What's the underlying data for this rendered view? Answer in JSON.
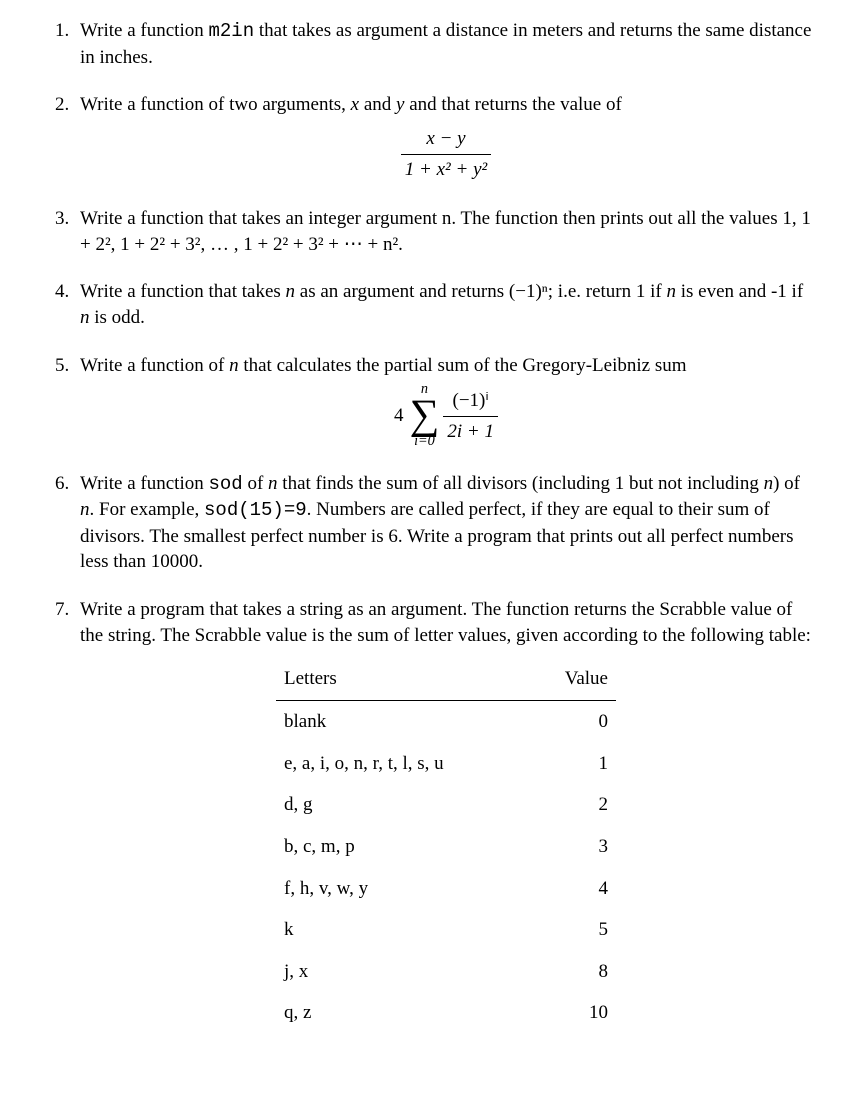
{
  "problems": {
    "q1": {
      "text_a": "Write a function ",
      "code_a": "m2in",
      "text_b": " that takes as argument a distance in meters and returns the same distance in inches."
    },
    "q2": {
      "text_a": "Write a function of two arguments, ",
      "x": "x",
      "and": " and ",
      "y": "y",
      "text_b": " and that returns the value of",
      "frac_num": "x − y",
      "frac_den": "1 + x² + y²"
    },
    "q3": {
      "text_a": "Write a function that takes an integer argument n. The function then prints out all the values ",
      "seq": "1, 1 + 2², 1 + 2² + 3², … , 1 + 2² + 3² + ⋯ + n²."
    },
    "q4": {
      "text_a": "Write a function that takes ",
      "n": "n",
      "text_b": " as an argument and returns ",
      "expr": "(−1)ⁿ",
      "text_c": "; i.e. return 1 if ",
      "n2": "n",
      "text_d": " is even and -1 if ",
      "n3": "n",
      "text_e": " is odd."
    },
    "q5": {
      "text_a": "Write a function of ",
      "n": "n",
      "text_b": " that calculates the partial sum of the Gregory-Leibniz sum",
      "coef": "4",
      "sum_top": "n",
      "sum_bottom": "i=0",
      "frac_num": "(−1)ⁱ",
      "frac_den": "2i + 1"
    },
    "q6": {
      "text_a": "Write a function ",
      "code_a": "sod",
      "text_b": " of ",
      "n": "n",
      "text_c": " that finds the sum of all divisors (including 1 but not including ",
      "n2": "n",
      "text_d": ") of ",
      "n3": "n",
      "text_e": ". For example, ",
      "code_b": "sod(15)=9",
      "text_f": ". Numbers are called perfect, if they are equal to their sum of divisors. The smallest perfect number is 6. Write a program that prints out all perfect numbers less than 10000."
    },
    "q7": {
      "text_a": "Write a program that takes a string as an argument. The function returns the Scrabble value of the string. The Scrabble value is the sum of letter values, given according to the following table:",
      "header_letters": "Letters",
      "header_value": "Value",
      "rows": [
        {
          "letters": "blank",
          "value": "0"
        },
        {
          "letters": "e, a, i, o, n, r, t, l, s, u",
          "value": "1"
        },
        {
          "letters": "d, g",
          "value": "2"
        },
        {
          "letters": "b, c, m, p",
          "value": "3"
        },
        {
          "letters": "f, h, v, w, y",
          "value": "4"
        },
        {
          "letters": "k",
          "value": "5"
        },
        {
          "letters": "j, x",
          "value": "8"
        },
        {
          "letters": "q, z",
          "value": "10"
        }
      ]
    }
  }
}
